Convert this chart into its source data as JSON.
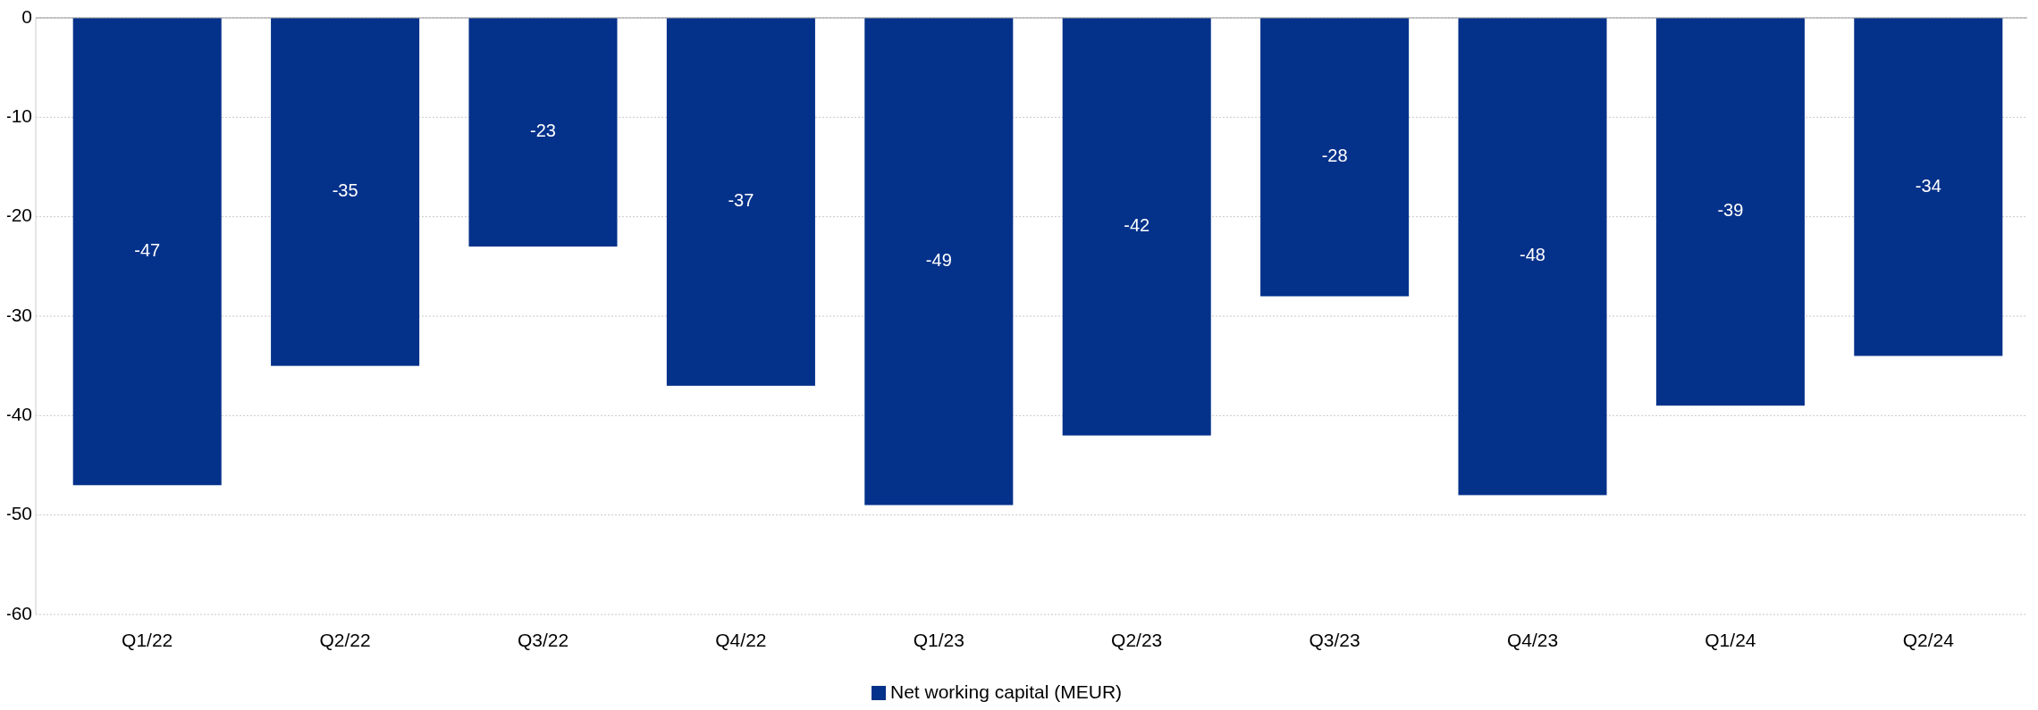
{
  "chart_data": {
    "type": "bar",
    "categories": [
      "Q1/22",
      "Q2/22",
      "Q3/22",
      "Q4/22",
      "Q1/23",
      "Q2/23",
      "Q3/23",
      "Q4/23",
      "Q1/24",
      "Q2/24"
    ],
    "series": [
      {
        "name": "Net working capital (MEUR)",
        "color": "#04318a",
        "values": [
          -47,
          -35,
          -23,
          -37,
          -49,
          -42,
          -28,
          -48,
          -39,
          -34
        ]
      }
    ],
    "ylim": [
      -60,
      0
    ],
    "yticks": [
      -60,
      -50,
      -40,
      -30,
      -20,
      -10,
      0
    ],
    "grid": "y",
    "legend": "bottom",
    "data_labels": true
  }
}
